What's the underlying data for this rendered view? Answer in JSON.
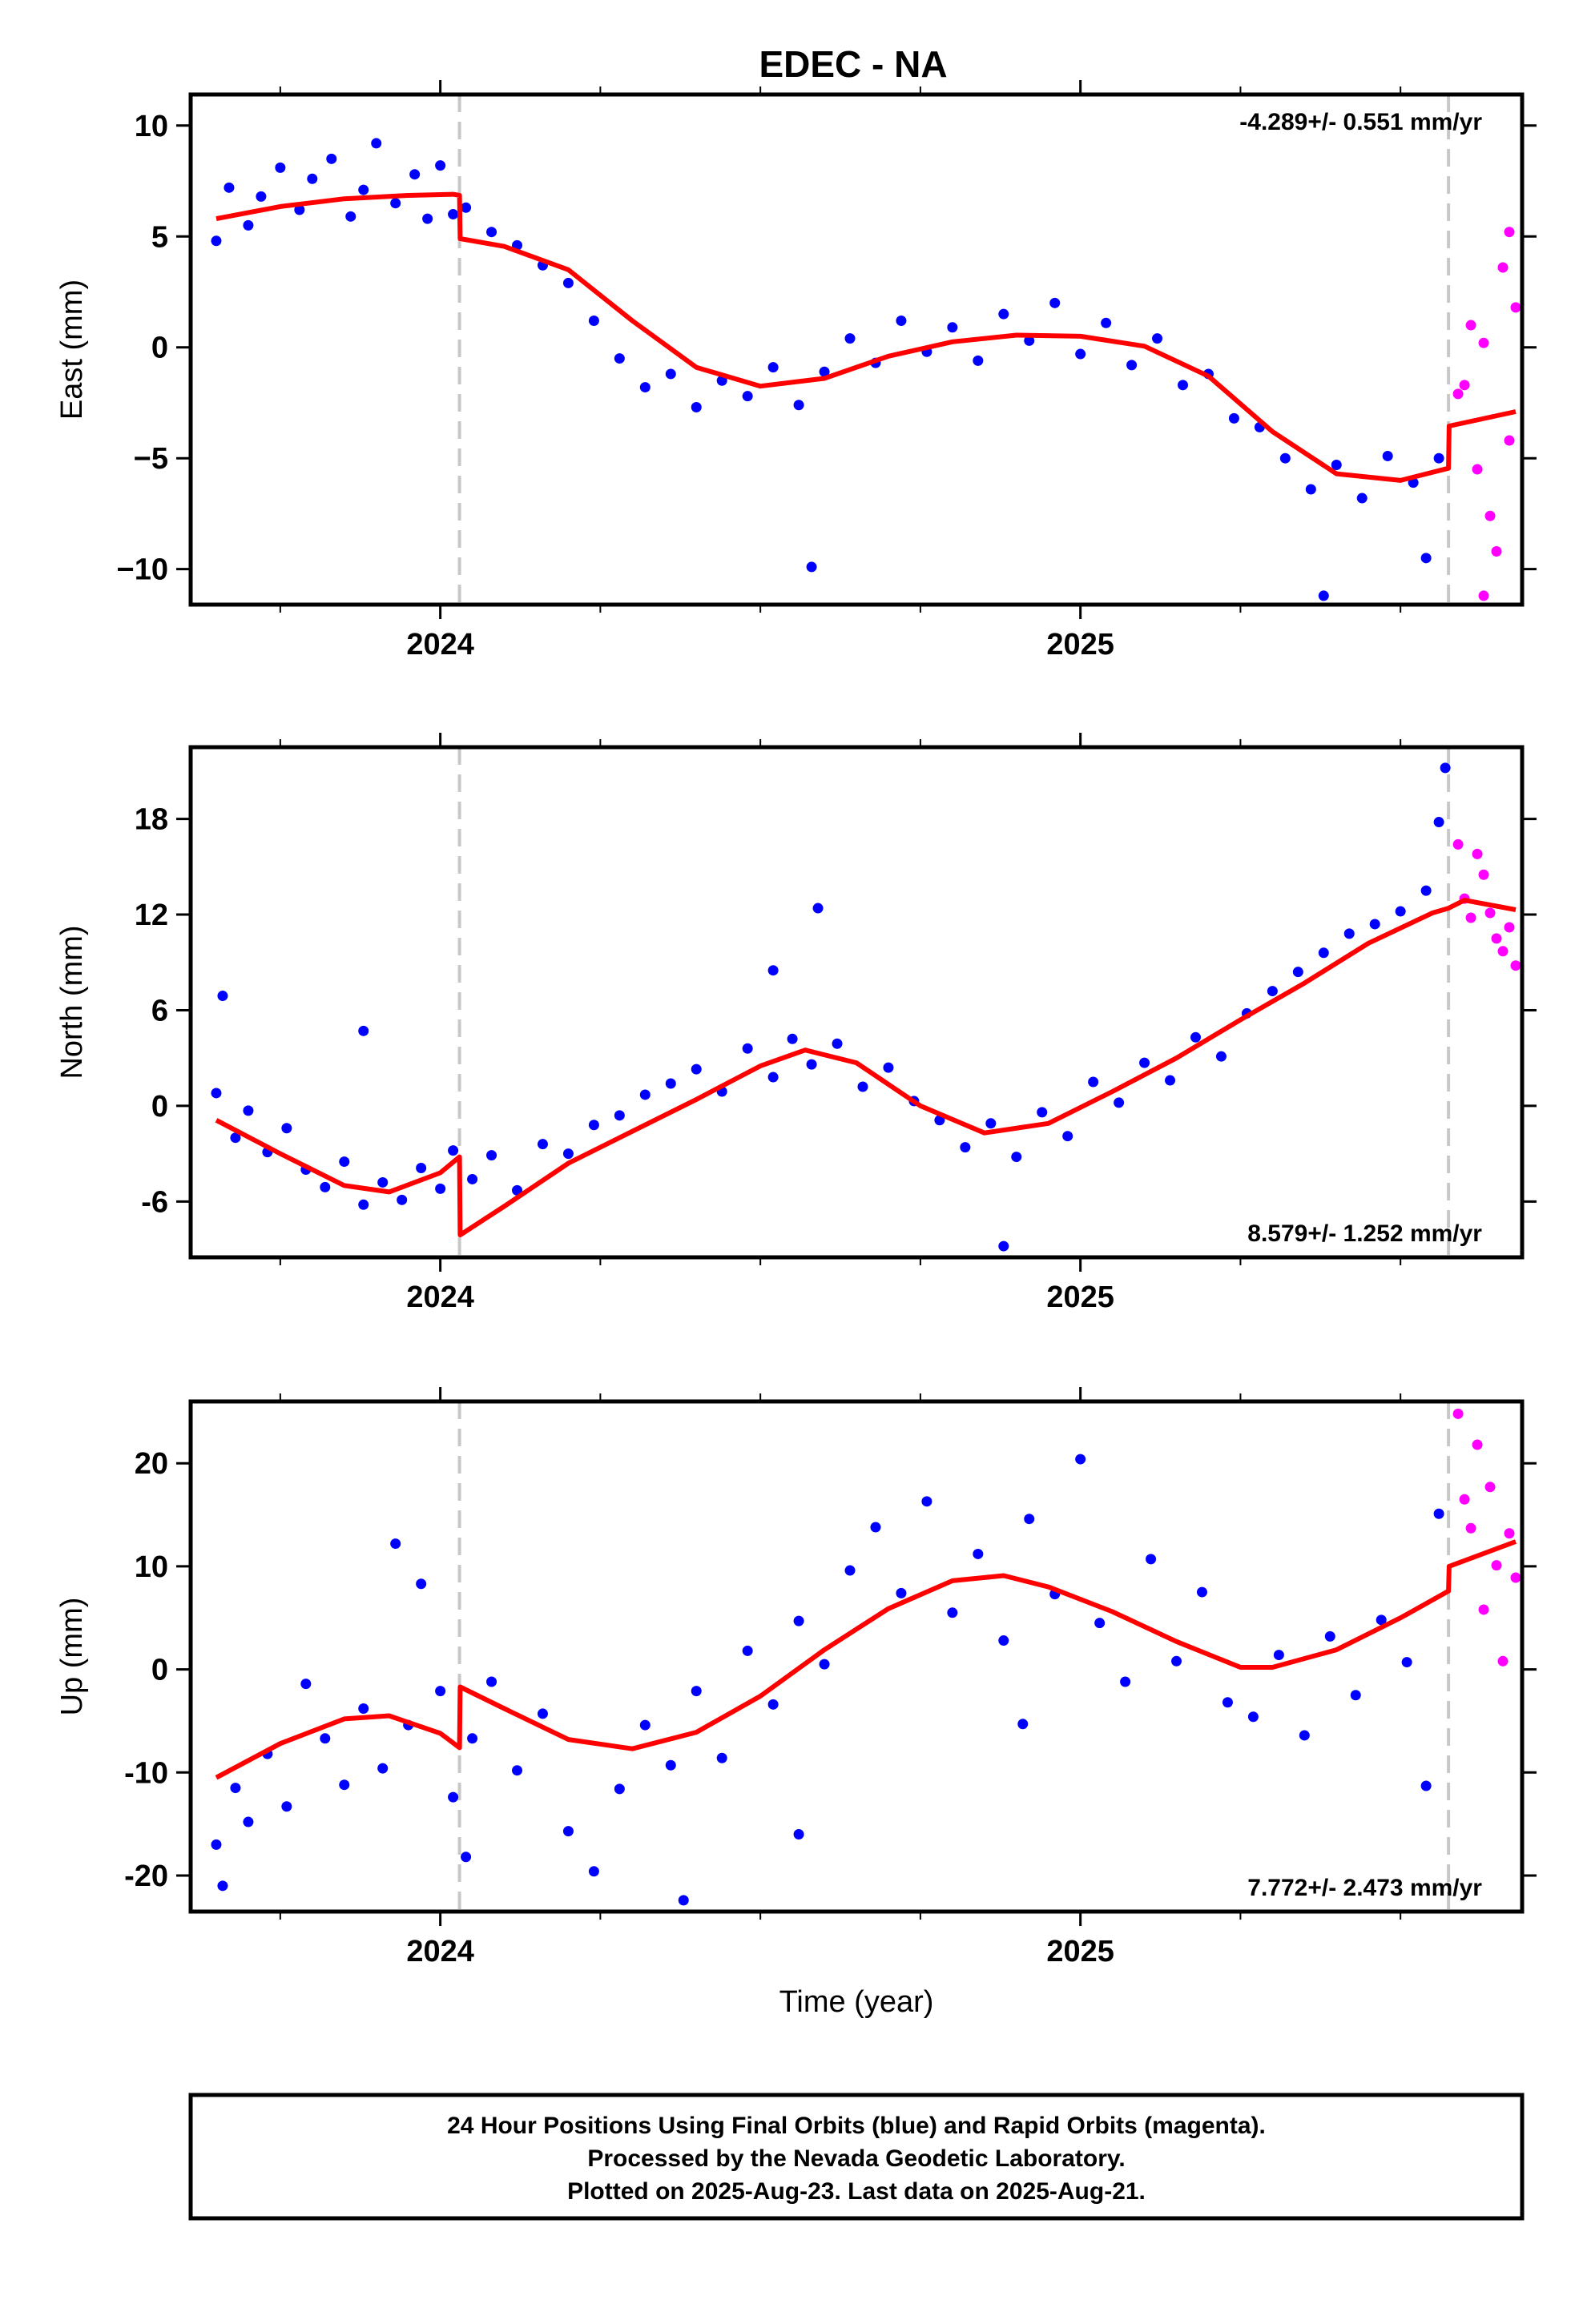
{
  "title": "EDEC - NA",
  "footer": [
    "24 Hour Positions Using Final Orbits (blue) and Rapid Orbits (magenta).",
    "Processed by the Nevada Geodetic Laboratory.",
    "Plotted on 2025-Aug-23. Last data on 2025-Aug-21."
  ],
  "colors": {
    "final": "#0000ff",
    "rapid": "#ff00ff",
    "model": "#ff0000",
    "event_line": "#c8c8c8"
  },
  "chart_data": [
    {
      "type": "scatter",
      "ylabel": "East (mm)",
      "xlabel": "",
      "rate_label": "-4.289+/- 0.551 mm/yr",
      "rate_position": "top-right",
      "xlim": [
        2023.61,
        2025.69
      ],
      "ylim": [
        -11.6,
        11.4
      ],
      "yticks": [
        10,
        5,
        0,
        -5,
        -10
      ],
      "ytick_labels": [
        "10",
        "5",
        "0",
        "−5",
        "−10"
      ],
      "xticks": [
        2024,
        2025
      ],
      "xtick_labels": [
        "2024",
        "2025"
      ],
      "event_lines": [
        2024.03,
        2025.575
      ],
      "model": [
        [
          2023.65,
          5.8
        ],
        [
          2023.75,
          6.35
        ],
        [
          2023.85,
          6.7
        ],
        [
          2023.95,
          6.85
        ],
        [
          2024.02,
          6.9
        ],
        [
          2024.03,
          6.85
        ],
        [
          2024.031,
          4.9
        ],
        [
          2024.1,
          4.55
        ],
        [
          2024.2,
          3.5
        ],
        [
          2024.3,
          1.2
        ],
        [
          2024.4,
          -0.9
        ],
        [
          2024.5,
          -1.75
        ],
        [
          2024.6,
          -1.4
        ],
        [
          2024.7,
          -0.4
        ],
        [
          2024.8,
          0.25
        ],
        [
          2024.9,
          0.55
        ],
        [
          2025.0,
          0.5
        ],
        [
          2025.1,
          0.05
        ],
        [
          2025.2,
          -1.3
        ],
        [
          2025.3,
          -3.8
        ],
        [
          2025.4,
          -5.7
        ],
        [
          2025.5,
          -6.0
        ],
        [
          2025.575,
          -5.45
        ],
        [
          2025.576,
          -3.55
        ],
        [
          2025.68,
          -2.9
        ]
      ],
      "final_points": [
        [
          2023.65,
          4.8
        ],
        [
          2023.67,
          7.2
        ],
        [
          2023.7,
          5.5
        ],
        [
          2023.72,
          6.8
        ],
        [
          2023.75,
          8.1
        ],
        [
          2023.78,
          6.2
        ],
        [
          2023.8,
          7.6
        ],
        [
          2023.83,
          8.5
        ],
        [
          2023.86,
          5.9
        ],
        [
          2023.88,
          7.1
        ],
        [
          2023.9,
          9.2
        ],
        [
          2023.93,
          6.5
        ],
        [
          2023.96,
          7.8
        ],
        [
          2023.98,
          5.8
        ],
        [
          2024.0,
          8.2
        ],
        [
          2024.02,
          6.0
        ],
        [
          2024.04,
          6.3
        ],
        [
          2024.08,
          5.2
        ],
        [
          2024.12,
          4.6
        ],
        [
          2024.16,
          3.7
        ],
        [
          2024.2,
          2.9
        ],
        [
          2024.24,
          1.2
        ],
        [
          2024.28,
          -0.5
        ],
        [
          2024.32,
          -1.8
        ],
        [
          2024.36,
          -1.2
        ],
        [
          2024.4,
          -2.7
        ],
        [
          2024.44,
          -1.5
        ],
        [
          2024.48,
          -2.2
        ],
        [
          2024.52,
          -0.9
        ],
        [
          2024.56,
          -2.6
        ],
        [
          2024.6,
          -1.1
        ],
        [
          2024.64,
          0.4
        ],
        [
          2024.68,
          -0.7
        ],
        [
          2024.72,
          1.2
        ],
        [
          2024.76,
          -0.2
        ],
        [
          2024.8,
          0.9
        ],
        [
          2024.84,
          -0.6
        ],
        [
          2024.88,
          1.5
        ],
        [
          2024.92,
          0.3
        ],
        [
          2024.96,
          2.0
        ],
        [
          2025.0,
          -0.3
        ],
        [
          2025.04,
          1.1
        ],
        [
          2025.08,
          -0.8
        ],
        [
          2025.12,
          0.4
        ],
        [
          2025.16,
          -1.7
        ],
        [
          2025.2,
          -1.2
        ],
        [
          2025.24,
          -3.2
        ],
        [
          2025.28,
          -3.6
        ],
        [
          2025.32,
          -5.0
        ],
        [
          2025.36,
          -6.4
        ],
        [
          2025.4,
          -5.3
        ],
        [
          2025.44,
          -6.8
        ],
        [
          2025.48,
          -4.9
        ],
        [
          2025.52,
          -6.1
        ],
        [
          2025.56,
          -5.0
        ],
        [
          2024.58,
          -9.9
        ],
        [
          2025.38,
          -11.2
        ],
        [
          2025.54,
          -9.5
        ]
      ],
      "rapid_points": [
        [
          2025.59,
          -2.1
        ],
        [
          2025.6,
          -1.7
        ],
        [
          2025.61,
          1.0
        ],
        [
          2025.62,
          -5.5
        ],
        [
          2025.63,
          0.2
        ],
        [
          2025.64,
          -7.6
        ],
        [
          2025.65,
          -9.2
        ],
        [
          2025.66,
          3.6
        ],
        [
          2025.67,
          -4.2
        ],
        [
          2025.67,
          5.2
        ],
        [
          2025.68,
          1.8
        ],
        [
          2025.63,
          -11.2
        ]
      ]
    },
    {
      "type": "scatter",
      "ylabel": "North (mm)",
      "xlabel": "",
      "rate_label": "8.579+/- 1.252 mm/yr",
      "rate_position": "bottom-right",
      "xlim": [
        2023.61,
        2025.69
      ],
      "ylim": [
        -9.5,
        22.5
      ],
      "yticks": [
        18,
        12,
        6,
        0,
        -6
      ],
      "ytick_labels": [
        "18",
        "12",
        "6",
        "0",
        "-6"
      ],
      "xticks": [
        2024,
        2025
      ],
      "xtick_labels": [
        "2024",
        "2025"
      ],
      "event_lines": [
        2024.03,
        2025.575
      ],
      "model": [
        [
          2023.65,
          -0.9
        ],
        [
          2023.75,
          -3.0
        ],
        [
          2023.85,
          -5.0
        ],
        [
          2023.92,
          -5.4
        ],
        [
          2024.0,
          -4.2
        ],
        [
          2024.03,
          -3.2
        ],
        [
          2024.031,
          -8.1
        ],
        [
          2024.1,
          -6.3
        ],
        [
          2024.2,
          -3.6
        ],
        [
          2024.3,
          -1.6
        ],
        [
          2024.4,
          0.4
        ],
        [
          2024.5,
          2.5
        ],
        [
          2024.57,
          3.5
        ],
        [
          2024.65,
          2.7
        ],
        [
          2024.75,
          0.0
        ],
        [
          2024.85,
          -1.7
        ],
        [
          2024.95,
          -1.1
        ],
        [
          2025.05,
          0.9
        ],
        [
          2025.15,
          3.0
        ],
        [
          2025.25,
          5.4
        ],
        [
          2025.35,
          7.7
        ],
        [
          2025.45,
          10.2
        ],
        [
          2025.55,
          12.1
        ],
        [
          2025.575,
          12.4
        ],
        [
          2025.6,
          12.9
        ],
        [
          2025.68,
          12.3
        ]
      ],
      "final_points": [
        [
          2023.65,
          0.8
        ],
        [
          2023.66,
          6.9
        ],
        [
          2023.68,
          -2.0
        ],
        [
          2023.7,
          -0.3
        ],
        [
          2023.73,
          -2.9
        ],
        [
          2023.76,
          -1.4
        ],
        [
          2023.79,
          -4.0
        ],
        [
          2023.82,
          -5.1
        ],
        [
          2023.85,
          -3.5
        ],
        [
          2023.88,
          -6.2
        ],
        [
          2023.91,
          -4.8
        ],
        [
          2023.94,
          -5.9
        ],
        [
          2023.97,
          -3.9
        ],
        [
          2024.0,
          -5.2
        ],
        [
          2024.02,
          -2.8
        ],
        [
          2024.05,
          -4.6
        ],
        [
          2024.08,
          -3.1
        ],
        [
          2024.12,
          -5.3
        ],
        [
          2024.16,
          -2.4
        ],
        [
          2024.2,
          -3.0
        ],
        [
          2024.24,
          -1.2
        ],
        [
          2024.28,
          -0.6
        ],
        [
          2024.32,
          0.7
        ],
        [
          2024.36,
          1.4
        ],
        [
          2024.4,
          2.3
        ],
        [
          2024.44,
          0.9
        ],
        [
          2024.48,
          3.6
        ],
        [
          2024.52,
          1.8
        ],
        [
          2024.55,
          4.2
        ],
        [
          2024.58,
          2.6
        ],
        [
          2024.62,
          3.9
        ],
        [
          2024.66,
          1.2
        ],
        [
          2024.7,
          2.4
        ],
        [
          2024.74,
          0.3
        ],
        [
          2024.78,
          -0.9
        ],
        [
          2024.82,
          -2.6
        ],
        [
          2024.86,
          -1.1
        ],
        [
          2024.9,
          -3.2
        ],
        [
          2024.94,
          -0.4
        ],
        [
          2024.98,
          -1.9
        ],
        [
          2025.02,
          1.5
        ],
        [
          2025.06,
          0.2
        ],
        [
          2025.1,
          2.7
        ],
        [
          2025.14,
          1.6
        ],
        [
          2025.18,
          4.3
        ],
        [
          2025.22,
          3.1
        ],
        [
          2025.26,
          5.8
        ],
        [
          2025.3,
          7.2
        ],
        [
          2025.34,
          8.4
        ],
        [
          2025.38,
          9.6
        ],
        [
          2025.42,
          10.8
        ],
        [
          2025.46,
          11.4
        ],
        [
          2025.5,
          12.2
        ],
        [
          2025.54,
          13.5
        ],
        [
          2025.56,
          17.8
        ],
        [
          2025.57,
          21.2
        ],
        [
          2024.59,
          12.4
        ],
        [
          2024.52,
          8.5
        ],
        [
          2023.88,
          4.7
        ],
        [
          2024.88,
          -8.8
        ]
      ],
      "rapid_points": [
        [
          2025.59,
          16.4
        ],
        [
          2025.6,
          13.0
        ],
        [
          2025.61,
          11.8
        ],
        [
          2025.62,
          15.8
        ],
        [
          2025.63,
          14.5
        ],
        [
          2025.64,
          12.1
        ],
        [
          2025.65,
          10.5
        ],
        [
          2025.66,
          9.7
        ],
        [
          2025.67,
          11.2
        ],
        [
          2025.68,
          8.8
        ]
      ]
    },
    {
      "type": "scatter",
      "ylabel": "Up (mm)",
      "xlabel": "Time (year)",
      "rate_label": "7.772+/- 2.473 mm/yr",
      "rate_position": "bottom-right",
      "xlim": [
        2023.61,
        2025.69
      ],
      "ylim": [
        -23.5,
        26
      ],
      "yticks": [
        20,
        10,
        0,
        -10,
        -20
      ],
      "ytick_labels": [
        "20",
        "10",
        "0",
        "-10",
        "-20"
      ],
      "xticks": [
        2024,
        2025
      ],
      "xtick_labels": [
        "2024",
        "2025"
      ],
      "event_lines": [
        2024.03,
        2025.575
      ],
      "model": [
        [
          2023.65,
          -10.5
        ],
        [
          2023.75,
          -7.2
        ],
        [
          2023.85,
          -4.8
        ],
        [
          2023.92,
          -4.5
        ],
        [
          2024.0,
          -6.2
        ],
        [
          2024.03,
          -7.6
        ],
        [
          2024.031,
          -1.7
        ],
        [
          2024.1,
          -3.8
        ],
        [
          2024.2,
          -6.8
        ],
        [
          2024.3,
          -7.7
        ],
        [
          2024.4,
          -6.1
        ],
        [
          2024.5,
          -2.6
        ],
        [
          2024.6,
          1.9
        ],
        [
          2024.7,
          5.9
        ],
        [
          2024.8,
          8.6
        ],
        [
          2024.88,
          9.1
        ],
        [
          2024.95,
          8.0
        ],
        [
          2025.05,
          5.6
        ],
        [
          2025.15,
          2.7
        ],
        [
          2025.25,
          0.2
        ],
        [
          2025.3,
          0.2
        ],
        [
          2025.4,
          1.9
        ],
        [
          2025.5,
          5.0
        ],
        [
          2025.575,
          7.6
        ],
        [
          2025.576,
          10.0
        ],
        [
          2025.68,
          12.4
        ]
      ],
      "final_points": [
        [
          2023.65,
          -17.0
        ],
        [
          2023.66,
          -21.0
        ],
        [
          2023.68,
          -11.5
        ],
        [
          2023.7,
          -14.8
        ],
        [
          2023.73,
          -8.2
        ],
        [
          2023.76,
          -13.3
        ],
        [
          2023.79,
          -1.4
        ],
        [
          2023.82,
          -6.7
        ],
        [
          2023.85,
          -11.2
        ],
        [
          2023.88,
          -3.8
        ],
        [
          2023.91,
          -9.6
        ],
        [
          2023.93,
          12.2
        ],
        [
          2023.95,
          -5.4
        ],
        [
          2023.97,
          8.3
        ],
        [
          2024.0,
          -2.1
        ],
        [
          2024.02,
          -12.4
        ],
        [
          2024.05,
          -6.7
        ],
        [
          2024.08,
          -1.2
        ],
        [
          2024.12,
          -9.8
        ],
        [
          2024.16,
          -4.3
        ],
        [
          2024.2,
          -15.7
        ],
        [
          2024.24,
          -19.6
        ],
        [
          2024.28,
          -11.6
        ],
        [
          2024.32,
          -5.4
        ],
        [
          2024.36,
          -9.3
        ],
        [
          2024.4,
          -2.1
        ],
        [
          2024.44,
          -8.6
        ],
        [
          2024.48,
          1.8
        ],
        [
          2024.52,
          -3.4
        ],
        [
          2024.56,
          4.7
        ],
        [
          2024.6,
          0.5
        ],
        [
          2024.64,
          9.6
        ],
        [
          2024.68,
          13.8
        ],
        [
          2024.72,
          7.4
        ],
        [
          2024.76,
          16.3
        ],
        [
          2024.8,
          5.5
        ],
        [
          2024.84,
          11.2
        ],
        [
          2024.88,
          2.8
        ],
        [
          2024.92,
          14.6
        ],
        [
          2024.96,
          7.3
        ],
        [
          2025.0,
          20.4
        ],
        [
          2025.03,
          4.5
        ],
        [
          2025.07,
          -1.2
        ],
        [
          2025.11,
          10.7
        ],
        [
          2025.15,
          0.8
        ],
        [
          2025.19,
          7.5
        ],
        [
          2025.23,
          -3.2
        ],
        [
          2025.27,
          -4.6
        ],
        [
          2025.31,
          1.4
        ],
        [
          2025.35,
          -6.4
        ],
        [
          2025.39,
          3.2
        ],
        [
          2025.43,
          -2.5
        ],
        [
          2025.47,
          4.8
        ],
        [
          2025.51,
          0.7
        ],
        [
          2025.54,
          -11.3
        ],
        [
          2025.56,
          15.1
        ],
        [
          2024.38,
          -22.4
        ],
        [
          2024.56,
          -16.0
        ],
        [
          2024.91,
          -5.3
        ],
        [
          2024.04,
          -18.2
        ]
      ],
      "rapid_points": [
        [
          2025.59,
          24.8
        ],
        [
          2025.6,
          16.5
        ],
        [
          2025.61,
          13.7
        ],
        [
          2025.62,
          21.8
        ],
        [
          2025.63,
          5.8
        ],
        [
          2025.64,
          17.7
        ],
        [
          2025.65,
          10.1
        ],
        [
          2025.66,
          0.8
        ],
        [
          2025.67,
          13.2
        ],
        [
          2025.68,
          8.9
        ]
      ]
    }
  ]
}
